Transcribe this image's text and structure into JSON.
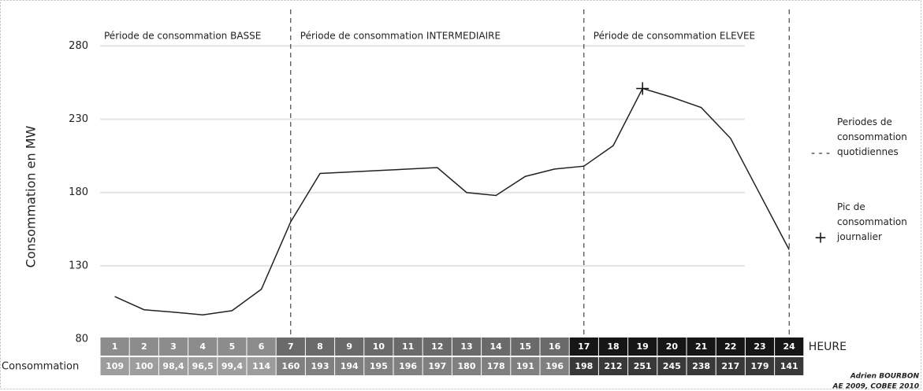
{
  "chart_data": {
    "type": "line",
    "y_label": "Consommation en MW",
    "categories": [
      1,
      2,
      3,
      4,
      5,
      6,
      7,
      8,
      9,
      10,
      11,
      12,
      13,
      14,
      15,
      16,
      17,
      18,
      19,
      20,
      21,
      22,
      23,
      24
    ],
    "values": [
      109,
      100,
      98.4,
      96.5,
      99.4,
      114,
      160,
      193,
      194,
      195,
      196,
      197,
      180,
      178,
      191,
      196,
      198,
      212,
      251,
      245,
      238,
      217,
      179,
      141
    ],
    "value_labels": [
      "109",
      "100",
      "98,4",
      "96,5",
      "99,4",
      "114",
      "160",
      "193",
      "194",
      "195",
      "196",
      "197",
      "180",
      "178",
      "191",
      "196",
      "198",
      "212",
      "251",
      "245",
      "238",
      "217",
      "179",
      "141"
    ],
    "color": "#222222",
    "ylim": [
      80,
      306
    ],
    "yticks": [
      80,
      130,
      180,
      230,
      280
    ],
    "grid": true,
    "periods": [
      {
        "label": "Période de consommation BASSE",
        "from": 1,
        "to": 6,
        "color": "#8c8c8c"
      },
      {
        "label": "Période de consommation INTERMEDIAIRE",
        "from": 7,
        "to": 16,
        "color": "#6a6a6a"
      },
      {
        "label": "Période de consommation ELEVEE",
        "from": 17,
        "to": 24,
        "color": "#161616"
      }
    ],
    "hour_row_label": "HEURE",
    "value_row_label": "Consommation",
    "legend": [
      {
        "symbol": "- - -",
        "label": "Periodes de consommation quotidiennes"
      },
      {
        "symbol": "+",
        "label": "Pic de consommation journalier"
      }
    ],
    "credit": [
      "Adrien BOURBON",
      "AE 2009, COBEE 2010"
    ]
  }
}
